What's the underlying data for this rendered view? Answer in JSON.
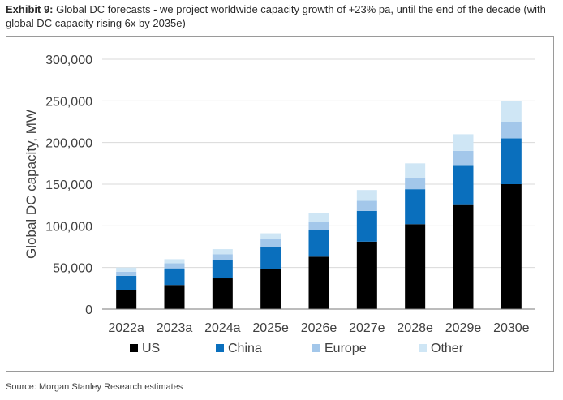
{
  "caption": {
    "exhibit_label": "Exhibit 9:",
    "text": "Global DC forecasts - we project worldwide capacity growth of +23% pa, until the end of the decade (with global DC capacity rising 6x by 2035e)"
  },
  "source": "Source: Morgan Stanley Research estimates",
  "colors": {
    "US": "#000000",
    "China": "#0a6fbd",
    "Europe": "#a3c7ea",
    "Other": "#cfe6f5"
  },
  "chart_data": {
    "type": "bar",
    "stacked": true,
    "title": "",
    "xlabel": "",
    "ylabel": "Global DC capacity, MW",
    "ylim": [
      0,
      300000
    ],
    "yticks": [
      0,
      50000,
      100000,
      150000,
      200000,
      250000,
      300000
    ],
    "ytick_labels": [
      "0",
      "50,000",
      "100,000",
      "150,000",
      "200,000",
      "250,000",
      "300,000"
    ],
    "grid": "horizontal",
    "legend_position": "bottom",
    "categories": [
      "2022a",
      "2023a",
      "2024a",
      "2025e",
      "2026e",
      "2027e",
      "2028e",
      "2029e",
      "2030e"
    ],
    "series": [
      {
        "name": "US",
        "values": [
          23000,
          29000,
          37000,
          48000,
          63000,
          81000,
          102000,
          125000,
          150000
        ]
      },
      {
        "name": "China",
        "values": [
          17000,
          20000,
          22000,
          27000,
          32000,
          37000,
          42000,
          48000,
          55000
        ]
      },
      {
        "name": "Europe",
        "values": [
          5000,
          6000,
          7000,
          9000,
          10000,
          12000,
          14000,
          17000,
          20000
        ]
      },
      {
        "name": "Other",
        "values": [
          5000,
          5000,
          6000,
          7000,
          10000,
          13000,
          17000,
          20000,
          25000
        ]
      }
    ]
  }
}
